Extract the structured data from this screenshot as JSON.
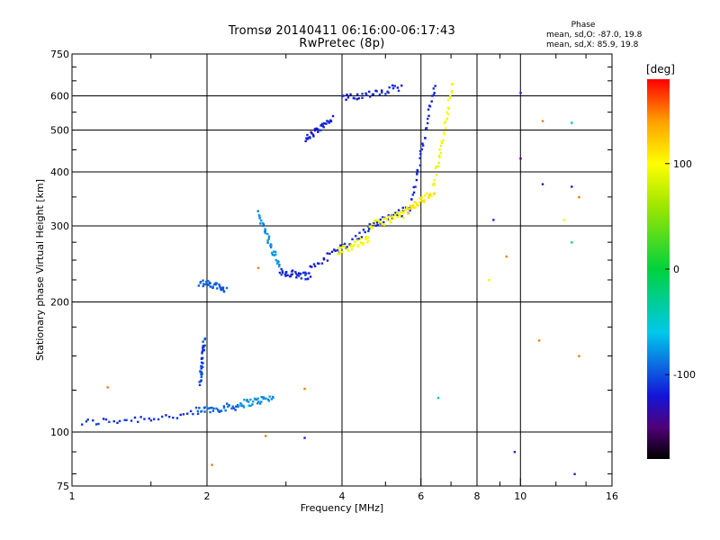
{
  "header": {
    "title": "Tromsø 20140411 06:16:00-06:17:43",
    "subtitle": "RwPretec (8p)",
    "phase_heading": "Phase",
    "stat_o": "mean, sd,O: -87.0, 19.8",
    "stat_x": "mean, sd,X:  85.9, 19.8"
  },
  "colorbar": {
    "unit": "[deg]",
    "tick_labels": [
      "100",
      "0",
      "-100"
    ],
    "tick_values": [
      100,
      0,
      -100
    ],
    "range": [
      -180,
      180
    ]
  },
  "chart_data": {
    "type": "scatter",
    "xlabel": "Frequency [MHz]",
    "ylabel": "Stationary phase Virtual Height [km]",
    "x_scale": "log",
    "y_scale": "log",
    "xlim": [
      1,
      16
    ],
    "ylim": [
      75,
      750
    ],
    "x_ticks": [
      1,
      2,
      4,
      6,
      8,
      10,
      16
    ],
    "x_tick_labels": [
      "1",
      "2",
      "4",
      "6",
      "8",
      "10",
      "16"
    ],
    "y_ticks": [
      75,
      100,
      200,
      300,
      400,
      500,
      600,
      750
    ],
    "y_tick_labels": [
      "75",
      "100",
      "200",
      "300",
      "400",
      "500",
      "600",
      "750"
    ],
    "grid_major_x": [
      2,
      4,
      6,
      8,
      10
    ],
    "grid_major_y": [
      100,
      200,
      300,
      400,
      500,
      600
    ],
    "grid": true,
    "color_value": "phase [deg]",
    "traces": [
      {
        "x_start": 1.05,
        "x_end": 1.9,
        "y_start": 105,
        "y_end": 110,
        "phase": -110
      },
      {
        "x_start": 1.9,
        "x_end": 2.35,
        "y_start": 112,
        "y_end": 115,
        "phase": -95
      },
      {
        "x_start": 2.35,
        "x_end": 2.8,
        "y_start": 116,
        "y_end": 120,
        "phase": -80
      },
      {
        "x_start": 1.93,
        "x_end": 1.97,
        "y_start": 130,
        "y_end": 165,
        "phase": -105
      },
      {
        "x_start": 1.92,
        "x_end": 2.2,
        "y_start": 222,
        "y_end": 215,
        "phase": -95
      },
      {
        "x_start": 2.6,
        "x_end": 2.9,
        "y_start": 320,
        "y_end": 240,
        "phase": -80
      },
      {
        "x_start": 2.9,
        "x_end": 3.4,
        "y_start": 235,
        "y_end": 230,
        "phase": -115
      },
      {
        "x_start": 3.4,
        "x_end": 4.6,
        "y_start": 240,
        "y_end": 295,
        "phase": -115
      },
      {
        "x_start": 4.6,
        "x_end": 5.7,
        "y_start": 300,
        "y_end": 330,
        "phase": -115
      },
      {
        "x_start": 5.7,
        "x_end": 6.45,
        "y_start": 340,
        "y_end": 640,
        "phase": -115
      },
      {
        "x_start": 3.3,
        "x_end": 3.8,
        "y_start": 475,
        "y_end": 530,
        "phase": -115
      },
      {
        "x_start": 4.0,
        "x_end": 5.4,
        "y_start": 590,
        "y_end": 630,
        "phase": -115
      },
      {
        "x_start": 3.9,
        "x_end": 4.6,
        "y_start": 262,
        "y_end": 280,
        "phase": 95
      },
      {
        "x_start": 4.6,
        "x_end": 5.5,
        "y_start": 300,
        "y_end": 320,
        "phase": 95
      },
      {
        "x_start": 5.5,
        "x_end": 6.4,
        "y_start": 322,
        "y_end": 360,
        "phase": 110
      },
      {
        "x_start": 6.4,
        "x_end": 7.05,
        "y_start": 370,
        "y_end": 640,
        "phase": 95
      }
    ],
    "scattered_points": [
      {
        "x": 10.0,
        "y": 610,
        "phase": -115
      },
      {
        "x": 10.0,
        "y": 430,
        "phase": -150
      },
      {
        "x": 9.7,
        "y": 90,
        "phase": -115
      },
      {
        "x": 13.2,
        "y": 80,
        "phase": -115
      },
      {
        "x": 13.0,
        "y": 520,
        "phase": -40
      },
      {
        "x": 13.0,
        "y": 370,
        "phase": -115
      },
      {
        "x": 11.2,
        "y": 375,
        "phase": -115
      },
      {
        "x": 11.2,
        "y": 525,
        "phase": 150
      },
      {
        "x": 11.0,
        "y": 163,
        "phase": 150
      },
      {
        "x": 13.5,
        "y": 350,
        "phase": 150
      },
      {
        "x": 13.5,
        "y": 150,
        "phase": 150
      },
      {
        "x": 12.5,
        "y": 310,
        "phase": 95
      },
      {
        "x": 8.7,
        "y": 310,
        "phase": -115
      },
      {
        "x": 8.5,
        "y": 225,
        "phase": 95
      },
      {
        "x": 9.3,
        "y": 255,
        "phase": 150
      },
      {
        "x": 13.0,
        "y": 275,
        "phase": -40
      },
      {
        "x": 6.55,
        "y": 120,
        "phase": -40
      },
      {
        "x": 3.3,
        "y": 126,
        "phase": 150
      },
      {
        "x": 1.2,
        "y": 127,
        "phase": 150
      },
      {
        "x": 2.7,
        "y": 98,
        "phase": 150
      },
      {
        "x": 3.3,
        "y": 97,
        "phase": -115
      },
      {
        "x": 2.05,
        "y": 84,
        "phase": 150
      },
      {
        "x": 2.6,
        "y": 240,
        "phase": 150
      }
    ]
  }
}
